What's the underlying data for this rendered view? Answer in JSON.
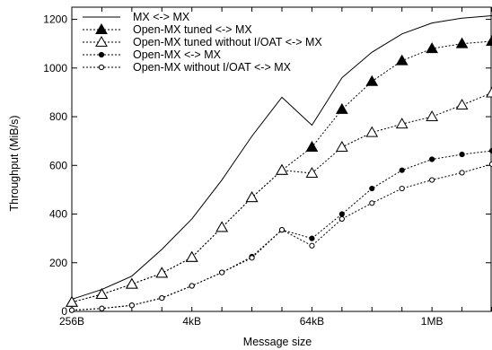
{
  "chart_data": {
    "type": "line",
    "title": "",
    "xlabel": "Message size",
    "ylabel": "Throughput (MiB/s)",
    "x_scale": "log2",
    "x_tick_labels": [
      "256B",
      "4kB",
      "64kB",
      "1MB"
    ],
    "x_tick_values_bytes": [
      256,
      4096,
      65536,
      1048576
    ],
    "x": [
      256,
      512,
      1024,
      2048,
      4096,
      8192,
      16384,
      32768,
      65536,
      131072,
      262144,
      524288,
      1048576,
      2097152,
      4194304
    ],
    "ylim": [
      0,
      1250
    ],
    "yticks": [
      0,
      200,
      400,
      600,
      800,
      1000,
      1200
    ],
    "grid": false,
    "legend_position": "top-left",
    "series": [
      {
        "name": "MX <-> MX",
        "line": "solid",
        "marker": "none",
        "values": [
          50,
          90,
          145,
          255,
          380,
          540,
          720,
          880,
          765,
          960,
          1065,
          1140,
          1185,
          1205,
          1215
        ]
      },
      {
        "name": "Open-MX tuned <-> MX",
        "line": "dotted",
        "marker": "filled-triangle",
        "values": [
          38,
          70,
          112,
          157,
          222,
          345,
          468,
          580,
          675,
          830,
          945,
          1030,
          1080,
          1100,
          1110
        ]
      },
      {
        "name": "Open-MX tuned without I/OAT <-> MX",
        "line": "dotted",
        "marker": "open-triangle",
        "values": [
          38,
          70,
          112,
          157,
          222,
          345,
          468,
          580,
          568,
          675,
          735,
          770,
          800,
          848,
          898
        ]
      },
      {
        "name": "Open-MX <-> MX",
        "line": "dotted",
        "marker": "filled-circle",
        "values": [
          5,
          12,
          25,
          55,
          105,
          160,
          225,
          335,
          300,
          400,
          505,
          580,
          625,
          645,
          660
        ]
      },
      {
        "name": "Open-MX without I/OAT <-> MX",
        "line": "dotted",
        "marker": "open-circle",
        "values": [
          5,
          12,
          25,
          55,
          105,
          160,
          220,
          335,
          270,
          380,
          445,
          505,
          540,
          570,
          605
        ]
      }
    ]
  }
}
